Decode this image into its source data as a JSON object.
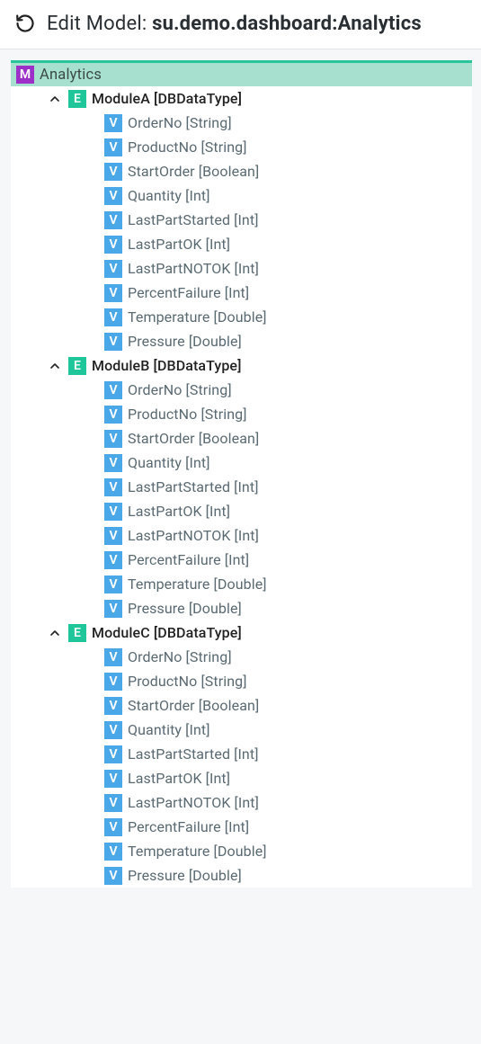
{
  "colors": {
    "accent_border": "#29c49a",
    "root_bg": "#a7e0ce",
    "badge_m": "#9b2fc7",
    "badge_e": "#1fc69a",
    "badge_v": "#4aa8e8",
    "text_primary": "#2a2f33",
    "text_secondary": "#5a6a72",
    "page_bg": "#f5f7f8",
    "panel_bg": "#ffffff",
    "divider": "#e0e5e8"
  },
  "header": {
    "prefix": "Edit Model: ",
    "model_path": "su.demo.dashboard:Analytics"
  },
  "tree": {
    "root": {
      "badge": "M",
      "label": "Analytics"
    },
    "entities": [
      {
        "badge": "E",
        "label": "ModuleA [DBDataType]",
        "expanded": true,
        "vars": [
          {
            "badge": "V",
            "label": "OrderNo [String]"
          },
          {
            "badge": "V",
            "label": "ProductNo [String]"
          },
          {
            "badge": "V",
            "label": "StartOrder [Boolean]"
          },
          {
            "badge": "V",
            "label": "Quantity [Int]"
          },
          {
            "badge": "V",
            "label": "LastPartStarted [Int]"
          },
          {
            "badge": "V",
            "label": "LastPartOK [Int]"
          },
          {
            "badge": "V",
            "label": "LastPartNOTOK [Int]"
          },
          {
            "badge": "V",
            "label": "PercentFailure [Int]"
          },
          {
            "badge": "V",
            "label": "Temperature [Double]"
          },
          {
            "badge": "V",
            "label": "Pressure [Double]"
          }
        ]
      },
      {
        "badge": "E",
        "label": "ModuleB [DBDataType]",
        "expanded": true,
        "vars": [
          {
            "badge": "V",
            "label": "OrderNo [String]"
          },
          {
            "badge": "V",
            "label": "ProductNo [String]"
          },
          {
            "badge": "V",
            "label": "StartOrder [Boolean]"
          },
          {
            "badge": "V",
            "label": "Quantity [Int]"
          },
          {
            "badge": "V",
            "label": "LastPartStarted [Int]"
          },
          {
            "badge": "V",
            "label": "LastPartOK [Int]"
          },
          {
            "badge": "V",
            "label": "LastPartNOTOK [Int]"
          },
          {
            "badge": "V",
            "label": "PercentFailure [Int]"
          },
          {
            "badge": "V",
            "label": "Temperature [Double]"
          },
          {
            "badge": "V",
            "label": "Pressure [Double]"
          }
        ]
      },
      {
        "badge": "E",
        "label": "ModuleC [DBDataType]",
        "expanded": true,
        "vars": [
          {
            "badge": "V",
            "label": "OrderNo [String]"
          },
          {
            "badge": "V",
            "label": "ProductNo [String]"
          },
          {
            "badge": "V",
            "label": "StartOrder [Boolean]"
          },
          {
            "badge": "V",
            "label": "Quantity [Int]"
          },
          {
            "badge": "V",
            "label": "LastPartStarted [Int]"
          },
          {
            "badge": "V",
            "label": "LastPartOK [Int]"
          },
          {
            "badge": "V",
            "label": "LastPartNOTOK [Int]"
          },
          {
            "badge": "V",
            "label": "PercentFailure [Int]"
          },
          {
            "badge": "V",
            "label": "Temperature [Double]"
          },
          {
            "badge": "V",
            "label": "Pressure [Double]"
          }
        ]
      }
    ]
  }
}
